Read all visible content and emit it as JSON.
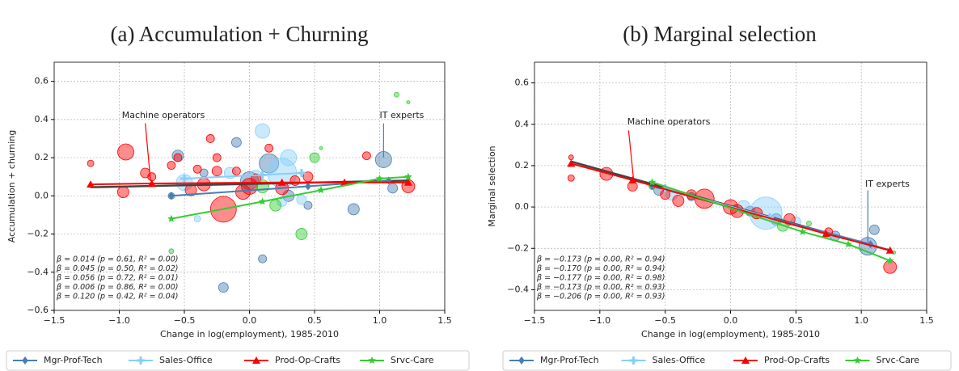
{
  "chart_data": [
    {
      "type": "scatter",
      "title": "(a) Accumulation + Churning",
      "xlabel": "Change in log(employment), 1985-2010",
      "ylabel": "Accumulation + churning",
      "xlim": [
        -1.5,
        1.5
      ],
      "ylim": [
        -0.6,
        0.7
      ],
      "grid": true,
      "legend": "below",
      "xticks": [
        {
          "value": -1.5,
          "label": "−1.5"
        },
        {
          "value": -1.0,
          "label": "−1.0"
        },
        {
          "value": -0.5,
          "label": "−0.5"
        },
        {
          "value": 0,
          "label": "0.0"
        },
        0.5,
        {
          "value": 1.0,
          "label": "1.0"
        },
        1.5
      ],
      "yticks": [
        {
          "value": -0.6,
          "label": "−0.6"
        },
        {
          "value": -0.4,
          "label": "−0.4"
        },
        {
          "value": -0.2,
          "label": "−0.2"
        },
        {
          "value": 0,
          "label": "0.0"
        },
        0.2,
        0.4,
        0.6
      ],
      "series": [
        {
          "name": "Mgr-Prof-Tech",
          "color": "#4a7db3",
          "marker": "diamond",
          "x": [
            -0.55,
            -0.6,
            -0.35,
            -0.2,
            0.0,
            0.15,
            0.1,
            0.3,
            0.45,
            0.8,
            1.03,
            1.1,
            -0.1
          ],
          "y": [
            0.21,
            0.0,
            0.12,
            -0.48,
            0.08,
            0.17,
            -0.33,
            0.0,
            -0.05,
            -0.07,
            0.19,
            0.04,
            0.28
          ],
          "sizes": [
            7,
            4,
            5,
            6,
            11,
            12,
            5,
            7,
            5,
            7,
            10,
            6,
            6
          ],
          "fit": {
            "x": [
              -0.6,
              0.45,
              1.07
            ],
            "y": [
              0.0,
              0.05,
              0.08
            ]
          }
        },
        {
          "name": "Sales-Office",
          "color": "#87cefa",
          "marker": "plus",
          "x": [
            0.1,
            0.25,
            0.3,
            -0.5,
            -0.15,
            0.05,
            0.4,
            -0.4,
            0.25
          ],
          "y": [
            0.34,
            0.12,
            0.2,
            0.07,
            0.12,
            0.1,
            -0.02,
            -0.12,
            -0.03
          ],
          "sizes": [
            9,
            18,
            10,
            10,
            7,
            8,
            6,
            4,
            6
          ],
          "fit": {
            "x": [
              -0.5,
              0.1,
              0.4
            ],
            "y": [
              0.09,
              0.11,
              0.12
            ]
          }
        },
        {
          "name": "Prod-Op-Crafts",
          "color": "#ff0000",
          "marker": "triangle",
          "x": [
            -1.22,
            -0.95,
            -0.97,
            -0.8,
            -0.75,
            -0.6,
            -0.55,
            -0.45,
            -0.35,
            -0.3,
            -0.25,
            -0.2,
            -0.1,
            -0.05,
            0.0,
            0.05,
            0.15,
            0.25,
            0.35,
            0.45,
            0.9,
            1.22,
            -0.25,
            -0.4
          ],
          "y": [
            0.17,
            0.23,
            0.02,
            0.12,
            0.1,
            0.16,
            0.2,
            0.03,
            0.06,
            0.3,
            0.13,
            -0.07,
            0.13,
            0.02,
            0.05,
            0.09,
            0.25,
            0.04,
            0.08,
            0.1,
            0.21,
            0.05,
            0.2,
            0.14
          ],
          "sizes": [
            4,
            10,
            7,
            6,
            5,
            5,
            5,
            7,
            8,
            5,
            6,
            16,
            5,
            9,
            10,
            6,
            5,
            8,
            6,
            6,
            5,
            8,
            5,
            5
          ],
          "fit": {
            "x": [
              -1.22,
              -0.75,
              0.25,
              0.73,
              1.22
            ],
            "y": [
              0.06,
              0.065,
              0.07,
              0.07,
              0.07
            ]
          }
        },
        {
          "name": "Srvc-Care",
          "color": "#32cd32",
          "marker": "star",
          "x": [
            0.5,
            0.4,
            0.1,
            0.2,
            -0.6,
            1.13,
            1.22,
            0.55
          ],
          "y": [
            0.2,
            -0.2,
            0.05,
            -0.05,
            -0.29,
            0.53,
            0.49,
            0.25
          ],
          "sizes": [
            6,
            7,
            8,
            7,
            3,
            3,
            2,
            2
          ],
          "fit": {
            "x": [
              -0.6,
              0.1,
              0.55,
              1.0,
              1.22
            ],
            "y": [
              -0.12,
              -0.03,
              0.03,
              0.09,
              0.1
            ]
          }
        }
      ],
      "overall_fit": {
        "color": "#444444",
        "x": [
          -1.22,
          1.22
        ],
        "y": [
          0.045,
          0.08
        ]
      },
      "stats": [
        {
          "text": "β = 0.014 (p = 0.61, R² = 0.00)",
          "color": "#444444"
        },
        {
          "text": "β = 0.045 (p = 0.50, R² = 0.02)",
          "color": "#4a7db3"
        },
        {
          "text": "β = 0.056 (p = 0.72, R² = 0.01)",
          "color": "#87cefa"
        },
        {
          "text": "β = 0.006 (p = 0.86, R² = 0.00)",
          "color": "#ff0000"
        },
        {
          "text": "β = 0.120 (p = 0.42, R² = 0.04)",
          "color": "#32cd32"
        }
      ],
      "annotations": [
        {
          "text": "Machine operators",
          "color": "#ff0000"
        },
        {
          "text": "IT experts",
          "color": "#4a7db3"
        }
      ]
    },
    {
      "type": "scatter",
      "title": "(b) Marginal selection",
      "xlabel": "Change in log(employment), 1985-2010",
      "ylabel": "Marginal selection",
      "xlim": [
        -1.5,
        1.5
      ],
      "ylim": [
        -0.5,
        0.7
      ],
      "grid": true,
      "legend": "below",
      "xticks": [
        {
          "value": -1.5,
          "label": "−1.5"
        },
        {
          "value": -1.0,
          "label": "−1.0"
        },
        {
          "value": -0.5,
          "label": "−0.5"
        },
        {
          "value": 0,
          "label": "0.0"
        },
        0.5,
        {
          "value": 1.0,
          "label": "1.0"
        },
        1.5
      ],
      "yticks": [
        {
          "value": -0.4,
          "label": "−0.4"
        },
        {
          "value": -0.2,
          "label": "−0.2"
        },
        {
          "value": 0,
          "label": "0.0"
        },
        0.2,
        0.4,
        0.6
      ],
      "series": [
        {
          "name": "Mgr-Prof-Tech",
          "color": "#4a7db3",
          "marker": "diamond",
          "x": [
            -0.55,
            -0.3,
            0.15,
            0.35,
            0.8,
            1.05,
            1.1
          ],
          "y": [
            0.08,
            0.05,
            -0.02,
            -0.06,
            -0.14,
            -0.19,
            -0.11
          ],
          "sizes": [
            6,
            5,
            6,
            7,
            6,
            11,
            6
          ],
          "fit": {
            "x": [
              -0.6,
              1.07
            ],
            "y": [
              0.1,
              -0.18
            ]
          }
        },
        {
          "name": "Sales-Office",
          "color": "#87cefa",
          "marker": "plus",
          "x": [
            0.27,
            -0.45,
            0.1,
            0.5
          ],
          "y": [
            -0.03,
            0.06,
            0.0,
            -0.07
          ],
          "sizes": [
            20,
            7,
            8,
            6
          ],
          "fit": {
            "x": [
              -0.5,
              0.3
            ],
            "y": [
              0.09,
              -0.05
            ]
          }
        },
        {
          "name": "Prod-Op-Crafts",
          "color": "#ff0000",
          "marker": "triangle",
          "x": [
            -1.22,
            -1.22,
            -0.95,
            -0.75,
            -0.5,
            -0.4,
            -0.3,
            -0.2,
            0.0,
            0.05,
            0.2,
            0.45,
            0.75,
            1.22
          ],
          "y": [
            0.24,
            0.14,
            0.16,
            0.1,
            0.06,
            0.03,
            0.06,
            0.04,
            0.0,
            -0.02,
            -0.03,
            -0.06,
            -0.12,
            -0.29
          ],
          "sizes": [
            3,
            4,
            8,
            6,
            6,
            7,
            6,
            12,
            9,
            8,
            7,
            7,
            5,
            8
          ],
          "fit": {
            "x": [
              -1.22,
              -0.75,
              0.73,
              1.22
            ],
            "y": [
              0.21,
              0.13,
              -0.13,
              -0.21
            ]
          }
        },
        {
          "name": "Srvc-Care",
          "color": "#32cd32",
          "marker": "star",
          "x": [
            -0.6,
            0.4,
            1.25,
            0.6
          ],
          "y": [
            0.1,
            -0.09,
            -0.22,
            -0.08
          ],
          "sizes": [
            4,
            7,
            2,
            3
          ],
          "fit": {
            "x": [
              -0.6,
              0.55,
              0.9,
              1.22
            ],
            "y": [
              0.12,
              -0.12,
              -0.18,
              -0.26
            ]
          }
        }
      ],
      "overall_fit": {
        "color": "#444444",
        "x": [
          -1.22,
          1.22
        ],
        "y": [
          0.22,
          -0.21
        ]
      },
      "stats": [
        {
          "text": "β = −0.173 (p = 0.00, R² = 0.94)",
          "color": "#444444"
        },
        {
          "text": "β = −0.170 (p = 0.00, R² = 0.94)",
          "color": "#4a7db3"
        },
        {
          "text": "β = −0.177 (p = 0.00, R² = 0.98)",
          "color": "#87cefa"
        },
        {
          "text": "β = −0.173 (p = 0.00, R² = 0.93)",
          "color": "#ff0000"
        },
        {
          "text": "β = −0.206 (p = 0.00, R² = 0.93)",
          "color": "#32cd32"
        }
      ],
      "annotations": [
        {
          "text": "Machine operators",
          "color": "#ff0000"
        },
        {
          "text": "IT experts",
          "color": "#4a7db3"
        }
      ]
    }
  ]
}
